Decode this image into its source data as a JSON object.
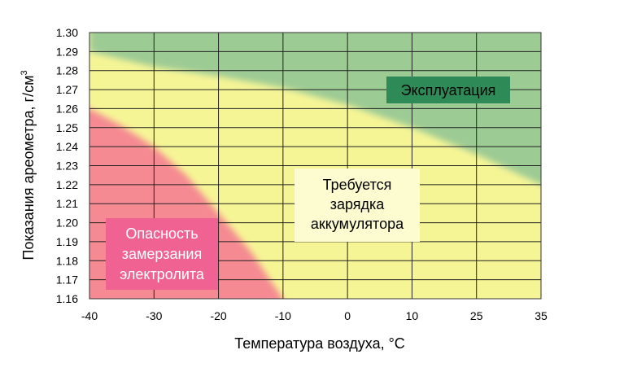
{
  "chart_data": {
    "type": "heatmap",
    "xlabel": "Температура воздуха, °C",
    "ylabel": "Показания ареометра, г/см",
    "ylabel_superscript": "3",
    "x_ticks": [
      "-40",
      "-30",
      "-20",
      "-10",
      "0",
      "10",
      "25",
      "35"
    ],
    "y_ticks": [
      "1.30",
      "1.29",
      "1.28",
      "1.27",
      "1.26",
      "1.25",
      "1.24",
      "1.23",
      "1.22",
      "1.21",
      "1.20",
      "1.19",
      "1.18",
      "1.17",
      "1.16"
    ],
    "ylim": [
      1.16,
      1.3
    ],
    "grid": true,
    "colors": {
      "background_yellow": "#f6f596",
      "operation_green": "#9dcb94",
      "freeze_red": "#f58a92",
      "operation_label_bg": "#2e8b57",
      "charge_label_bg": "#fdfcd0",
      "freeze_label_bg": "#f06292"
    },
    "zones": [
      {
        "name": "operation",
        "color": "#9dcb94",
        "boundary": [
          [
            -40,
            1.29
          ],
          [
            -35,
            1.286
          ],
          [
            -30,
            1.282
          ],
          [
            -20,
            1.277
          ],
          [
            -10,
            1.271
          ],
          [
            0,
            1.262
          ],
          [
            10,
            1.25
          ],
          [
            25,
            1.236
          ],
          [
            35,
            1.22
          ]
        ],
        "lines": [
          "Эксплуатация"
        ]
      },
      {
        "name": "charging",
        "color": "#f6f596",
        "lines": [
          "Требуется",
          "зарядка",
          "аккумулятора"
        ]
      },
      {
        "name": "freezing",
        "color": "#f58a92",
        "boundary": [
          [
            -40,
            1.26
          ],
          [
            -35,
            1.251
          ],
          [
            -30,
            1.24
          ],
          [
            -25,
            1.225
          ],
          [
            -20,
            1.205
          ],
          [
            -15,
            1.185
          ],
          [
            -12,
            1.17
          ],
          [
            -10,
            1.16
          ]
        ],
        "lines": [
          "Опасность",
          "замерзания",
          "электролита"
        ]
      }
    ]
  }
}
